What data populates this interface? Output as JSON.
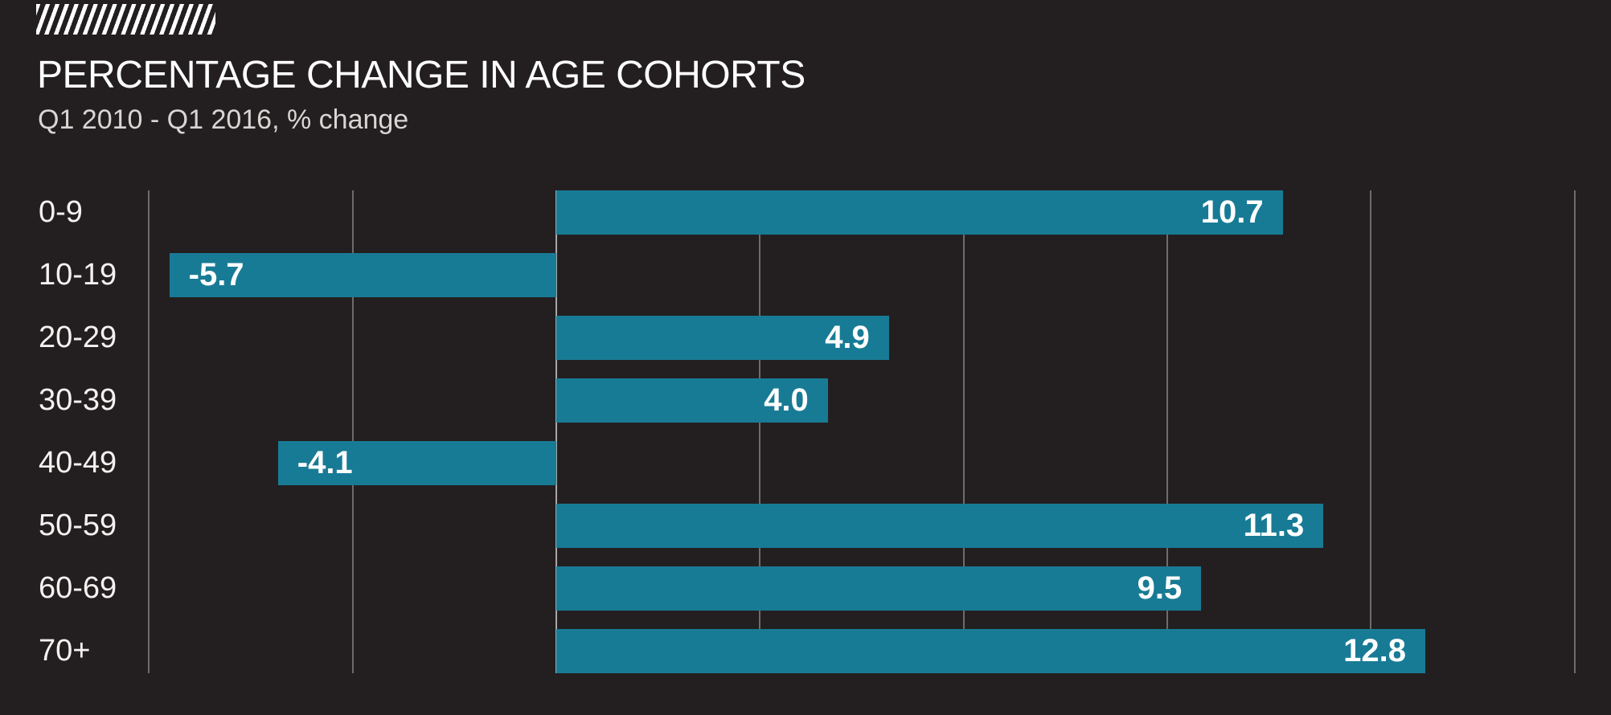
{
  "header": {
    "title": "PERCENTAGE CHANGE IN AGE COHORTS",
    "subtitle": "Q1 2010 - Q1 2016, % change",
    "decoration_icon": "diagonal-hatch-icon"
  },
  "colors": {
    "background": "#231f20",
    "bar": "#187b95",
    "gridline": "#6f6b6a",
    "zero_line": "#aaa6a5",
    "title_text": "#ffffff",
    "subtitle_text": "#d9d5d4",
    "category_text": "#f4f2f1",
    "value_text": "#ffffff"
  },
  "chart_data": {
    "type": "bar",
    "orientation": "horizontal",
    "title": "PERCENTAGE CHANGE IN AGE COHORTS",
    "subtitle": "Q1 2010 - Q1 2016, % change",
    "categories": [
      "0-9",
      "10-19",
      "20-29",
      "30-39",
      "40-49",
      "50-59",
      "60-69",
      "70+"
    ],
    "values": [
      10.7,
      -5.7,
      4.9,
      4.0,
      -4.1,
      11.3,
      9.5,
      12.8
    ],
    "value_labels": [
      "10.7",
      "-5.7",
      "4.9",
      "4.0",
      "-4.1",
      "11.3",
      "9.5",
      "12.8"
    ],
    "xlim": [
      -6,
      15.5
    ],
    "gridlines_x": [
      -6,
      -3,
      0,
      3,
      6,
      9,
      12,
      15
    ],
    "grid": true,
    "legend": false,
    "xlabel": "",
    "ylabel": "",
    "value_label_position": "inside-end",
    "category_label_position": "left-of-plot"
  }
}
